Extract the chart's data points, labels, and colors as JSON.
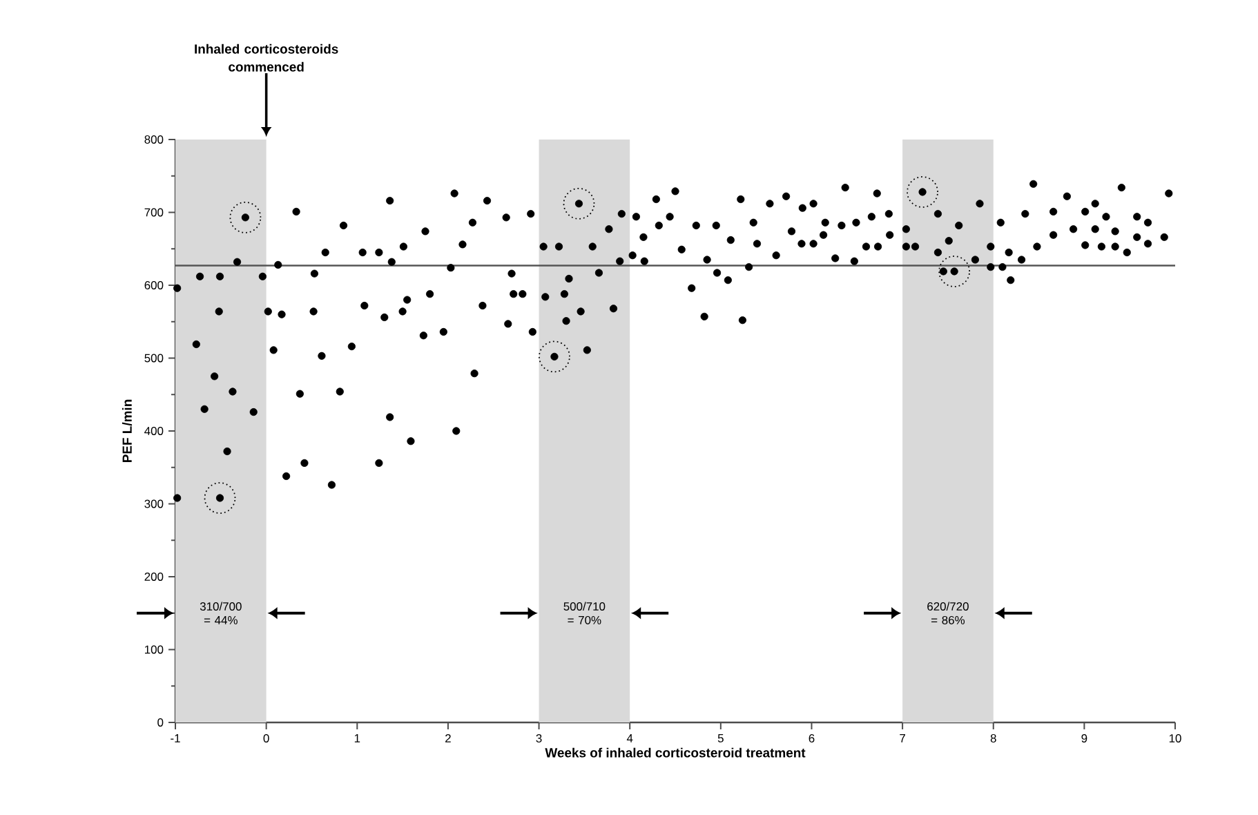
{
  "chart_data": {
    "type": "scatter",
    "xlabel": "Weeks of inhaled corticosteroid treatment",
    "ylabel": "PEF L/min",
    "xlim": [
      -1,
      10
    ],
    "ylim": [
      0,
      800
    ],
    "xticks": [
      -1,
      0,
      1,
      2,
      3,
      4,
      5,
      6,
      7,
      8,
      9,
      10
    ],
    "yticks": [
      0,
      100,
      200,
      300,
      400,
      500,
      600,
      700,
      800
    ],
    "annotations": [
      {
        "text": "Inhaled corticosteroids commenced",
        "x": 0,
        "y": 800
      }
    ],
    "ref_lines": [
      {
        "axis": "y",
        "value": 627,
        "color": "#555555"
      }
    ],
    "bands": [
      {
        "axis": "x",
        "from": -1,
        "to": 0,
        "label": "310/700 = 44%",
        "color": "#d9d9d9"
      },
      {
        "axis": "x",
        "from": 3,
        "to": 4,
        "label": "500/710 = 70%",
        "color": "#d9d9d9"
      },
      {
        "axis": "x",
        "from": 7,
        "to": 8,
        "label": "620/720 = 86%",
        "color": "#d9d9d9"
      }
    ],
    "series": [
      {
        "color": "#000000",
        "x": [
          -0.98,
          -0.98,
          -0.77,
          -0.73,
          -0.68,
          -0.57,
          -0.51,
          -0.52,
          -0.43,
          -0.37,
          -0.32,
          -0.14,
          -0.04,
          0.02,
          0.13,
          0.08,
          0.17,
          0.22,
          0.33,
          0.37,
          0.42,
          0.52,
          0.53,
          0.61,
          0.65,
          0.72,
          0.81,
          0.85,
          0.94,
          1.08,
          1.06,
          1.24,
          1.24,
          1.3,
          1.36,
          1.36,
          1.38,
          1.5,
          1.51,
          1.55,
          1.59,
          1.73,
          1.75,
          1.8,
          1.95,
          2.03,
          2.07,
          2.09,
          2.16,
          2.27,
          2.29,
          2.38,
          2.43,
          2.64,
          2.66,
          2.7,
          2.72,
          2.82,
          2.91,
          2.93,
          3.05,
          3.07,
          3.22,
          3.28,
          3.3,
          3.33,
          3.46,
          3.53,
          3.59,
          3.66,
          3.77,
          3.82,
          3.89,
          3.91,
          4.03,
          4.07,
          4.15,
          4.16,
          4.29,
          4.32,
          4.44,
          4.5,
          4.57,
          4.68,
          4.73,
          4.82,
          4.85,
          4.95,
          4.96,
          5.08,
          5.11,
          5.22,
          5.24,
          5.31,
          5.36,
          5.4,
          5.54,
          5.61,
          5.72,
          5.78,
          5.89,
          5.9,
          6.02,
          6.02,
          6.13,
          6.15,
          6.26,
          6.33,
          6.37,
          6.47,
          6.49,
          6.6,
          6.66,
          6.72,
          6.73,
          6.85,
          6.86,
          7.04,
          7.04,
          7.14,
          7.39,
          7.39,
          7.51,
          7.45,
          7.62,
          7.8,
          7.85,
          7.97,
          7.97,
          8.08,
          8.1,
          8.17,
          8.19,
          8.31,
          8.35,
          8.44,
          8.48,
          8.66,
          8.66,
          8.81,
          8.88,
          9.01,
          9.01,
          9.12,
          9.12,
          9.19,
          9.24,
          9.34,
          9.34,
          9.41,
          9.47,
          9.58,
          9.58,
          9.7,
          9.7,
          9.88,
          9.93
        ],
        "values": [
          596,
          308,
          519,
          612,
          430,
          475,
          612,
          564,
          372,
          454,
          632,
          426,
          612,
          564,
          628,
          511,
          560,
          338,
          701,
          451,
          356,
          564,
          616,
          503,
          645,
          326,
          454,
          682,
          516,
          572,
          645,
          645,
          356,
          556,
          419,
          716,
          632,
          564,
          653,
          580,
          386,
          531,
          674,
          588,
          536,
          624,
          726,
          400,
          656,
          686,
          479,
          572,
          716,
          693,
          547,
          616,
          588,
          588,
          698,
          536,
          653,
          584,
          653,
          588,
          551,
          609,
          564,
          511,
          653,
          617,
          677,
          568,
          633,
          698,
          641,
          694,
          666,
          633,
          718,
          682,
          694,
          729,
          649,
          596,
          682,
          557,
          635,
          682,
          617,
          607,
          662,
          718,
          552,
          625,
          686,
          657,
          712,
          641,
          722,
          674,
          657,
          706,
          657,
          712,
          669,
          686,
          637,
          682,
          734,
          633,
          686,
          653,
          694,
          726,
          653,
          698,
          669,
          677,
          653,
          653,
          698,
          645,
          661,
          619,
          682,
          635,
          712,
          653,
          625,
          686,
          625,
          645,
          607,
          635,
          698,
          739,
          653,
          701,
          669,
          722,
          677,
          655,
          701,
          712,
          677,
          653,
          694,
          653,
          674,
          734,
          645,
          694,
          666,
          686,
          657,
          666,
          726
        ]
      },
      {
        "color": "#000000",
        "line_style": "dotted",
        "x": [
          -0.51,
          -0.23,
          3.17,
          3.44,
          7.22,
          7.57
        ],
        "values": [
          308,
          693,
          502,
          712,
          728,
          619
        ]
      }
    ]
  }
}
